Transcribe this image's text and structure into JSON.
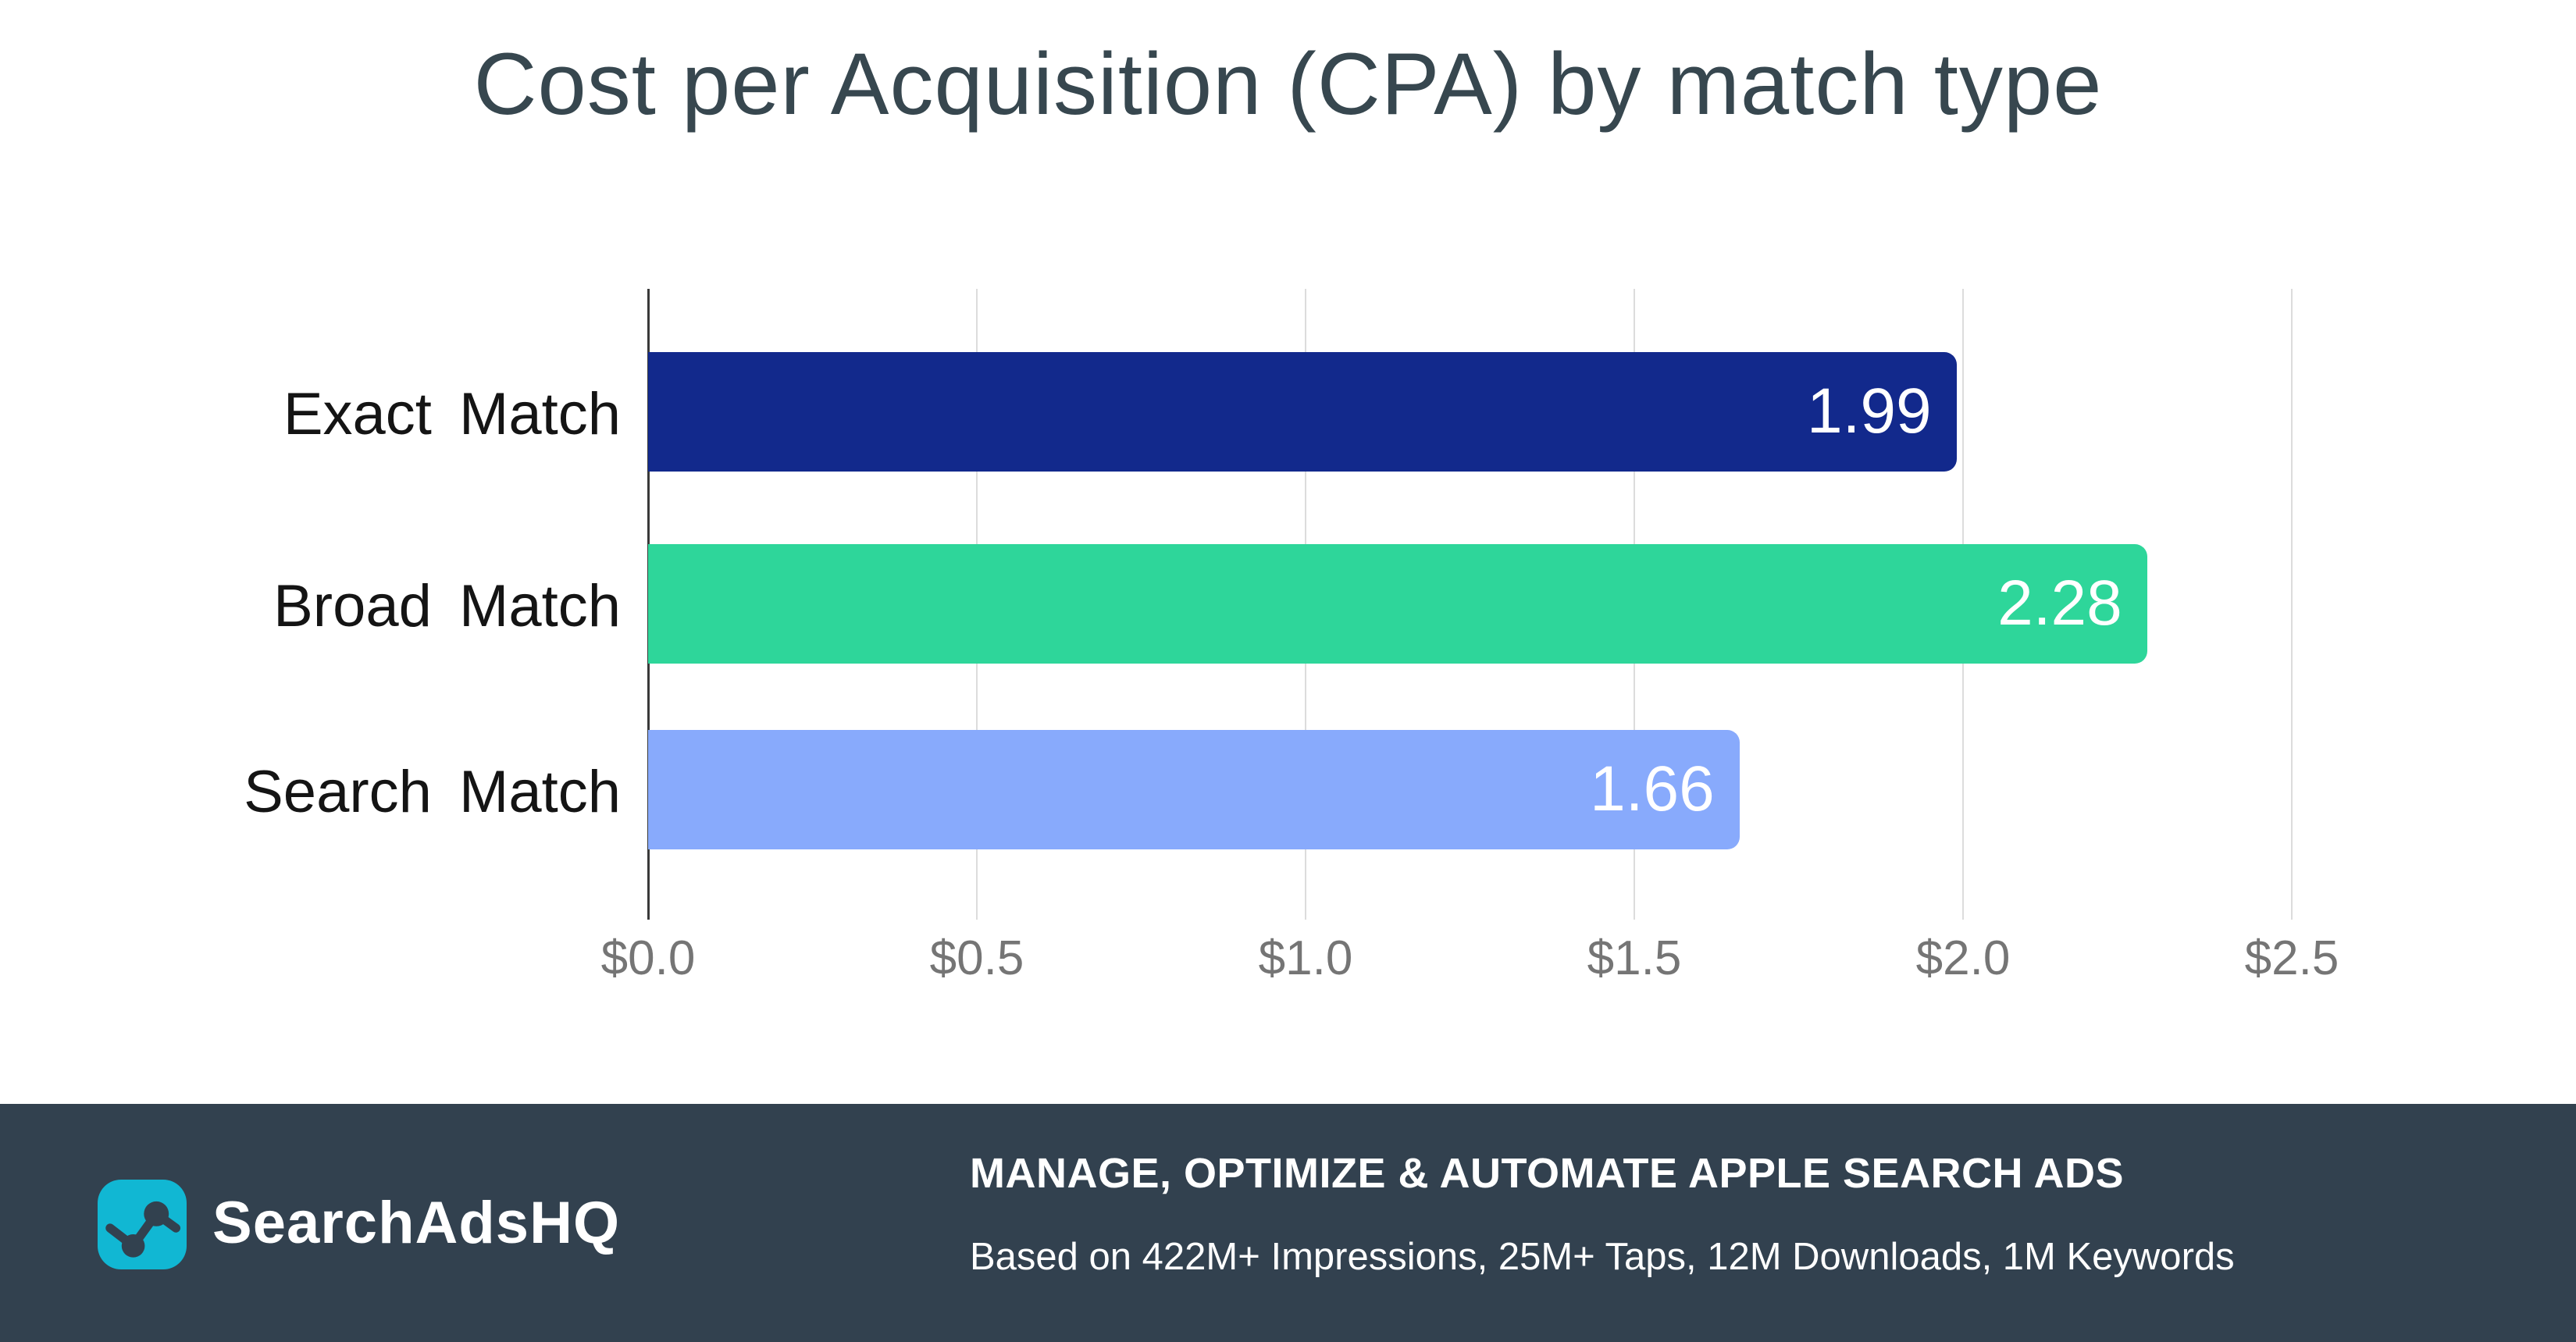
{
  "title": "Cost per Acquisition (CPA) by match type",
  "chart_data": {
    "type": "bar",
    "orientation": "horizontal",
    "title": "Cost per Acquisition (CPA) by match type",
    "categories": [
      "Exact Match",
      "Broad Match",
      "Search Match"
    ],
    "values": [
      1.99,
      2.28,
      1.66
    ],
    "value_labels": [
      "1.99",
      "2.28",
      "1.66"
    ],
    "bar_colors": [
      "#12298C",
      "#2ED69A",
      "#88AAFC"
    ],
    "xlabel": "",
    "ylabel": "",
    "xlim": [
      0,
      2.5
    ],
    "xticks": [
      0,
      0.5,
      1.0,
      1.5,
      2.0,
      2.5
    ],
    "xtick_labels": [
      "$0.0",
      "$0.5",
      "$1.0",
      "$1.5",
      "$2.0",
      "$2.5"
    ],
    "grid": true,
    "legend": false,
    "value_label_position": "inside-end"
  },
  "footer": {
    "brand": "SearchAdsHQ",
    "logo_icon": "line-chart-icon",
    "headline": "MANAGE, OPTIMIZE & AUTOMATE APPLE SEARCH ADS",
    "subline": "Based on 422M+ Impressions, 25M+ Taps, 12M Downloads, 1M Keywords"
  },
  "colors": {
    "title": "#37474F",
    "category_label": "#141414",
    "value_label": "#FFFFFF",
    "axis_tick_label": "#757575",
    "gridline": "#DCDCDC",
    "axis_line": "#3A3A3A",
    "footer_background": "#32414F",
    "logo_background": "#11B7D3",
    "logo_glyph": "#32414F"
  }
}
